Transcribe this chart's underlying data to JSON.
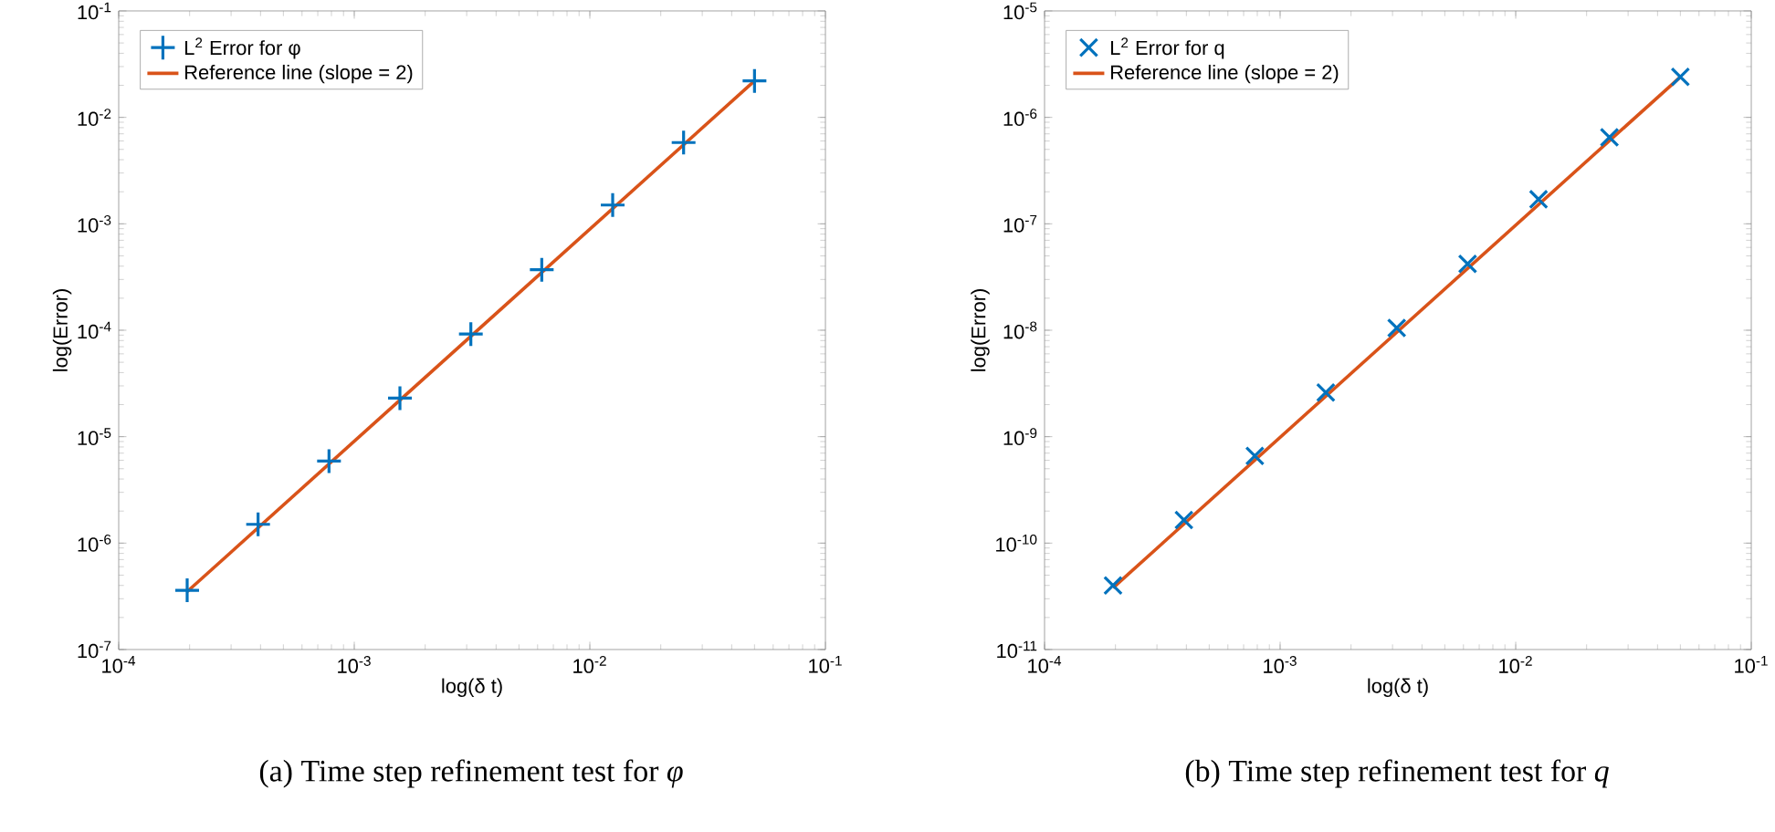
{
  "chart_data": [
    {
      "type": "scatter",
      "xlabel": "log(δ t)",
      "ylabel": "log(Error)",
      "log": "xy",
      "grid": false,
      "legend": "top left",
      "xlim": [
        0.0001,
        0.1
      ],
      "ylim": [
        1e-07,
        0.1
      ],
      "xticks": [
        {
          "value": 0.0001,
          "label": "10$^{-4}$"
        },
        {
          "value": 0.001,
          "label": "10$^{-3}$"
        },
        {
          "value": 0.01,
          "label": "10$^{-2}$"
        },
        {
          "value": 0.1,
          "label": "10$^{-1}$"
        }
      ],
      "yticks": [
        {
          "value": 1e-07,
          "label": "10$^{-7}$"
        },
        {
          "value": 1e-06,
          "label": "10$^{-6}$"
        },
        {
          "value": 1e-05,
          "label": "10$^{-5}$"
        },
        {
          "value": 0.0001,
          "label": "10$^{-4}$"
        },
        {
          "value": 0.001,
          "label": "10$^{-3}$"
        },
        {
          "value": 0.01,
          "label": "10$^{-2}$"
        },
        {
          "value": 0.1,
          "label": "10$^{-1}$"
        }
      ],
      "series": [
        {
          "name": "L$^{2}$ Error for φ",
          "marker": "plus",
          "color": "#0072bd",
          "x": [
            0.05,
            0.025,
            0.0125,
            0.00625,
            0.003125,
            0.0015625,
            0.00078125,
            0.000390625,
            0.0001953125
          ],
          "values": [
            0.022,
            0.0058,
            0.0015,
            0.00037,
            9.2e-05,
            2.3e-05,
            5.9e-06,
            1.5e-06,
            3.6e-07
          ]
        },
        {
          "name": "Reference line (slope = 2)",
          "type": "line",
          "line_style": "solid",
          "color": "#d95319",
          "x": [
            0.0001953125,
            0.05
          ],
          "values": [
            3.5e-07,
            0.022
          ]
        }
      ],
      "annotations": [
        "(a)  Time step refinement test for *φ*"
      ]
    },
    {
      "type": "scatter",
      "xlabel": "log(δ t)",
      "ylabel": "log(Error)",
      "log": "xy",
      "grid": false,
      "legend": "top left",
      "xlim": [
        0.0001,
        0.1
      ],
      "ylim": [
        1e-11,
        1e-05
      ],
      "xticks": [
        {
          "value": 0.0001,
          "label": "10$^{-4}$"
        },
        {
          "value": 0.001,
          "label": "10$^{-3}$"
        },
        {
          "value": 0.01,
          "label": "10$^{-2}$"
        },
        {
          "value": 0.1,
          "label": "10$^{-1}$"
        }
      ],
      "yticks": [
        {
          "value": 1e-11,
          "label": "10$^{-11}$"
        },
        {
          "value": 1e-10,
          "label": "10$^{-10}$"
        },
        {
          "value": 1e-09,
          "label": "10$^{-9}$"
        },
        {
          "value": 1e-08,
          "label": "10$^{-8}$"
        },
        {
          "value": 1e-07,
          "label": "10$^{-7}$"
        },
        {
          "value": 1e-06,
          "label": "10$^{-6}$"
        },
        {
          "value": 1e-05,
          "label": "10$^{-5}$"
        }
      ],
      "series": [
        {
          "name": "L$^{2}$ Error for q",
          "marker": "cross",
          "color": "#0072bd",
          "x": [
            0.05,
            0.025,
            0.0125,
            0.00625,
            0.003125,
            0.0015625,
            0.00078125,
            0.000390625,
            0.0001953125
          ],
          "values": [
            2.4e-06,
            6.5e-07,
            1.7e-07,
            4.2e-08,
            1.05e-08,
            2.6e-09,
            6.6e-10,
            1.65e-10,
            4e-11
          ]
        },
        {
          "name": "Reference line (slope = 2)",
          "type": "line",
          "line_style": "solid",
          "color": "#d95319",
          "x": [
            0.0001953125,
            0.05
          ],
          "values": [
            3.8e-11,
            2.4e-06
          ]
        }
      ],
      "annotations": [
        "(b)  Time step refinement test for *q*"
      ]
    }
  ]
}
